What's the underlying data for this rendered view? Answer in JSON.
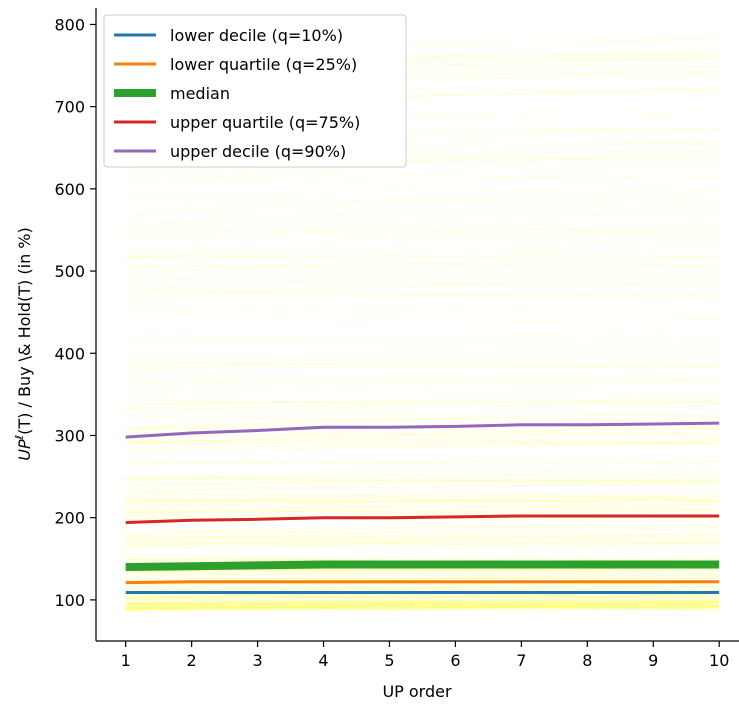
{
  "chart_data": {
    "type": "line",
    "x": [
      1,
      2,
      3,
      4,
      5,
      6,
      7,
      8,
      9,
      10
    ],
    "x_ticks": [
      "1",
      "2",
      "3",
      "4",
      "5",
      "6",
      "7",
      "8",
      "9",
      "10"
    ],
    "y_ticks": [
      "100",
      "200",
      "300",
      "400",
      "500",
      "600",
      "700",
      "800"
    ],
    "xlabel": "UP order",
    "ylabel_main": "UP",
    "ylabel_sup": "ℓ",
    "ylabel_rest": "(T) / Buy \\& Hold(T) (in %)",
    "xlim": [
      0.55,
      10.3
    ],
    "ylim": [
      50,
      820
    ],
    "grid": false,
    "legend_position": "top-left",
    "series": [
      {
        "name": "lower decile (q=10%)",
        "color": "#1f77b4",
        "values": [
          109,
          109,
          109,
          109,
          109,
          109,
          109,
          109,
          109,
          109
        ]
      },
      {
        "name": "lower quartile (q=25%)",
        "color": "#ff7f0e",
        "values": [
          121,
          122,
          122,
          122,
          122,
          122,
          122,
          122,
          122,
          122
        ]
      },
      {
        "name": "median",
        "color": "#2ca02c",
        "values": [
          140,
          141,
          142,
          143,
          143,
          143,
          143,
          143,
          143,
          143
        ]
      },
      {
        "name": "upper quartile (q=75%)",
        "color": "#d62728",
        "values": [
          194,
          197,
          198,
          200,
          200,
          201,
          202,
          202,
          202,
          202
        ]
      },
      {
        "name": "upper decile (q=90%)",
        "color": "#9467bd",
        "values": [
          298,
          303,
          306,
          310,
          310,
          311,
          313,
          313,
          314,
          315
        ]
      }
    ],
    "background_series_color": "#ffff00"
  }
}
